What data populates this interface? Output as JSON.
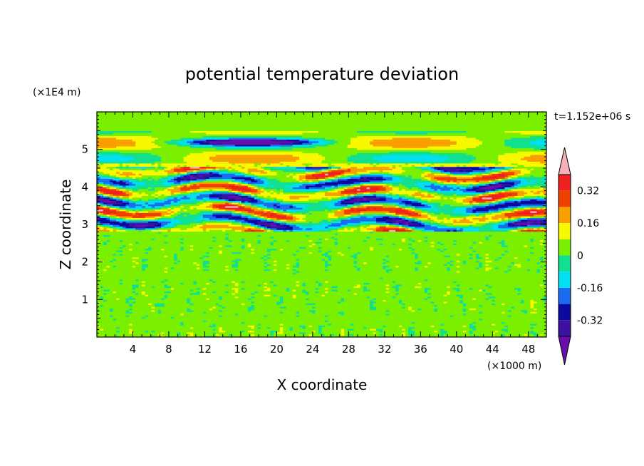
{
  "chart_data": {
    "type": "heatmap",
    "title": "potential temperature deviation",
    "xlabel": "X coordinate",
    "ylabel": "Z coordinate",
    "x_unit": "(×1000 m)",
    "y_unit": "(×1E4 m)",
    "time_label": "t=1.152e+06 s",
    "xlim": [
      0,
      50
    ],
    "ylim": [
      0,
      6
    ],
    "x_ticks": [
      "4",
      "8",
      "12",
      "16",
      "20",
      "24",
      "28",
      "32",
      "36",
      "40",
      "44",
      "48"
    ],
    "x_tick_values": [
      4,
      8,
      12,
      16,
      20,
      24,
      28,
      32,
      36,
      40,
      44,
      48
    ],
    "y_ticks": [
      "1",
      "2",
      "3",
      "4",
      "5"
    ],
    "y_tick_values": [
      1,
      2,
      3,
      4,
      5
    ],
    "colorbar": {
      "levels": [
        -0.4,
        -0.32,
        -0.24,
        -0.16,
        -0.08,
        0,
        0.08,
        0.16,
        0.24,
        0.32,
        0.4
      ],
      "colors": [
        "#6a0dad",
        "#3c10a0",
        "#0a0aa0",
        "#1a6cf0",
        "#00e0f0",
        "#10e090",
        "#7af000",
        "#f8f800",
        "#f8a000",
        "#f04000",
        "#f02020",
        "#f8b0b8"
      ],
      "tick_labels": [
        "-0.32",
        "-0.16",
        "0",
        "0.16",
        "0.32"
      ],
      "tick_values": [
        -0.32,
        -0.16,
        0,
        0.16,
        0.32
      ]
    },
    "layers": [
      {
        "z_range": [
          0,
          2.85
        ],
        "pattern": "small-scale noise",
        "range": [
          -0.04,
          0.08
        ]
      },
      {
        "z_range": [
          2.75,
          4.55
        ],
        "pattern": "strong layered anomalies",
        "range": [
          -0.4,
          0.4
        ]
      },
      {
        "z_range": [
          4.55,
          5.5
        ],
        "pattern": "weak banded",
        "range": [
          -0.4,
          0.32
        ]
      },
      {
        "z_range": [
          5.5,
          6
        ],
        "pattern": "near zero",
        "range": [
          0,
          0.08
        ]
      }
    ]
  }
}
